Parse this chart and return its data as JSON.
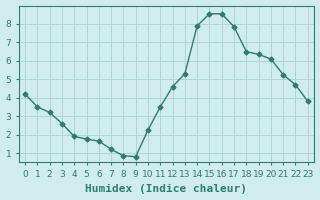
{
  "x": [
    0,
    1,
    2,
    3,
    4,
    5,
    6,
    7,
    8,
    9,
    10,
    11,
    12,
    13,
    14,
    15,
    16,
    17,
    18,
    19,
    20,
    21,
    22,
    23
  ],
  "y": [
    4.2,
    3.5,
    3.2,
    2.6,
    1.9,
    1.75,
    1.65,
    1.2,
    0.85,
    0.8,
    2.25,
    3.5,
    4.6,
    5.3,
    7.9,
    8.55,
    8.55,
    7.85,
    6.5,
    6.35,
    6.1,
    5.25,
    4.7,
    3.8
  ],
  "line_color": "#2e7d6e",
  "marker": "D",
  "marker_size": 2.5,
  "bg_color": "#d0ecec",
  "grid_color": "#b0d4d4",
  "grid_color_major": "#c8e4e4",
  "xlabel": "Humidex (Indice chaleur)",
  "xlabel_fontsize": 8,
  "ylabel_ticks": [
    1,
    2,
    3,
    4,
    5,
    6,
    7,
    8
  ],
  "xtick_labels": [
    "0",
    "1",
    "2",
    "3",
    "4",
    "5",
    "6",
    "7",
    "8",
    "9",
    "10",
    "11",
    "12",
    "13",
    "14",
    "15",
    "16",
    "17",
    "18",
    "19",
    "20",
    "21",
    "22",
    "23"
  ],
  "ylim": [
    0.5,
    9.0
  ],
  "xlim": [
    -0.5,
    23.5
  ],
  "tick_fontsize": 6.5,
  "linewidth": 1.0
}
